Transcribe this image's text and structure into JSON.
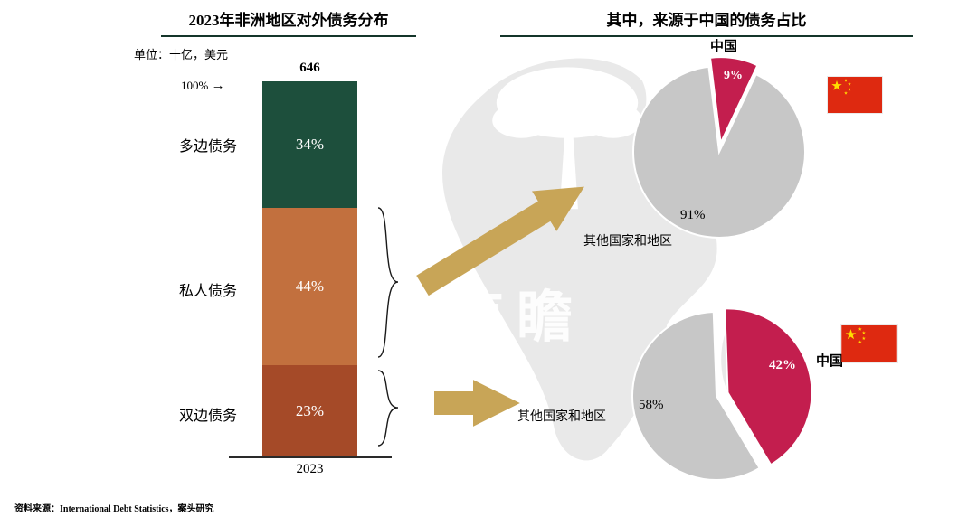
{
  "header": {
    "left_title": "2023年非洲地区对外债务分布",
    "right_title": "其中，来源于中国的债务占比"
  },
  "icons": {
    "axis_arrow": "→"
  },
  "watermark": "南瞻",
  "flag_colors": {
    "red": "#de2910",
    "yellow": "#ffde00"
  },
  "source": "资料来源：International Debt Statistics，案头研究",
  "chart_data": [
    {
      "type": "bar",
      "title": "2023年非洲地区对外债务分布",
      "unit_label": "单位：十亿，美元",
      "total_label": "646",
      "axis_top_label": "100%",
      "categories": [
        "2023"
      ],
      "stacked": true,
      "segments": [
        {
          "label": "多边债务",
          "value": 34,
          "display": "34%",
          "color": "#1d4f3c"
        },
        {
          "label": "私人债务",
          "value": 44,
          "display": "44%",
          "color": "#c2703e"
        },
        {
          "label": "双边债务",
          "value": 23,
          "display": "23%",
          "color": "#a54a28"
        }
      ]
    },
    {
      "type": "pie",
      "name": "top",
      "start_angle_deg": -7,
      "slices": [
        {
          "label": "中国",
          "value": 9,
          "display": "9%",
          "color": "#c31e4e",
          "exploded": true
        },
        {
          "label": "其他国家和地区",
          "value": 91,
          "display": "91%",
          "color": "#c7c7c7",
          "exploded": false
        }
      ]
    },
    {
      "type": "pie",
      "name": "bottom",
      "start_angle_deg": -2,
      "slices": [
        {
          "label": "中国",
          "value": 42,
          "display": "42%",
          "color": "#c31e4e",
          "exploded": true
        },
        {
          "label": "其他国家和地区",
          "value": 58,
          "display": "58%",
          "color": "#c7c7c7",
          "exploded": false
        }
      ]
    }
  ]
}
